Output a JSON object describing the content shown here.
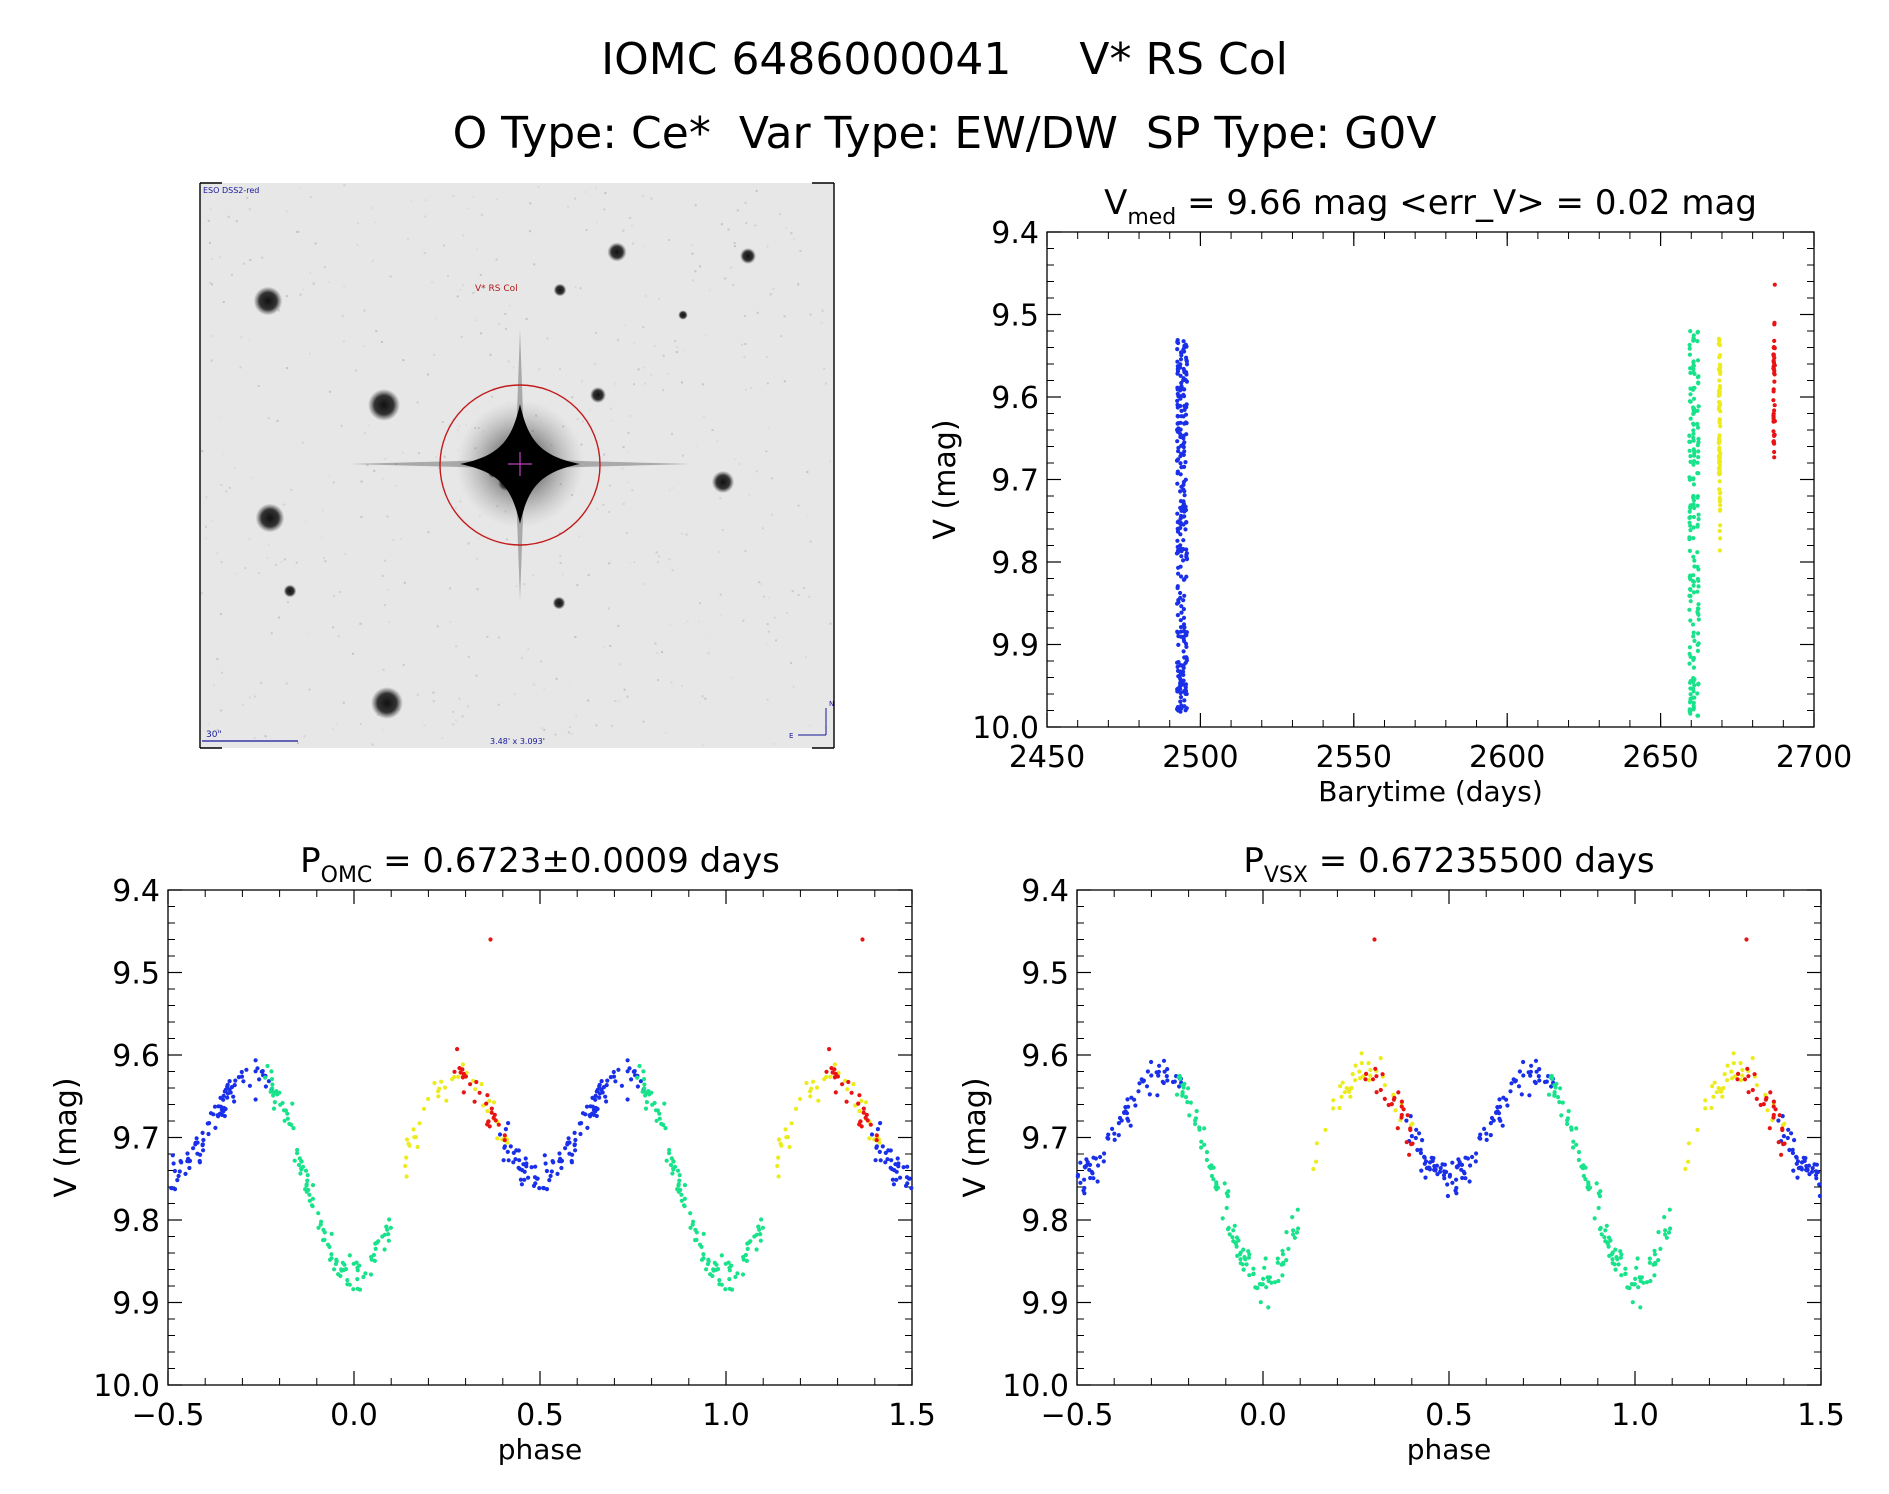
{
  "header": {
    "id": "IOMC 6486000041",
    "name": "V* RS Col",
    "types": "O Type: Ce*  Var Type: EW/DW  SP Type: G0V"
  },
  "finder": {
    "survey": "ESO DSS2-red",
    "target": "V* RS Col",
    "scale": "30\"",
    "fov": "3.48' x 3.093'",
    "compass_n": "N",
    "compass_e": "E"
  },
  "colors": {
    "blue": "#1a2fe8",
    "green": "#19e38a",
    "yellow": "#ecec1c",
    "red": "#e81414"
  },
  "chart_data": [
    {
      "type": "scatter",
      "title_main": "V",
      "title_sub": "med",
      "title_rest": " = 9.66 mag <err_V> = 0.02 mag",
      "xlabel": "Barytime (days)",
      "ylabel": "V (mag)",
      "xlim": [
        2450,
        2700
      ],
      "ylim": [
        10.0,
        9.4
      ],
      "xticks": [
        2450,
        2500,
        2550,
        2600,
        2650,
        2700
      ],
      "yticks": [
        9.4,
        9.5,
        9.6,
        9.7,
        9.8,
        9.9,
        10.0
      ],
      "series": [
        {
          "color": "blue",
          "x_min": 2492.5,
          "x_max": 2495.5,
          "y_min": 9.53,
          "y_max": 9.99
        },
        {
          "color": "green",
          "x_min": 2659.5,
          "x_max": 2662.5,
          "y_min": 9.52,
          "y_max": 9.99
        },
        {
          "color": "yellow",
          "x_min": 2668.5,
          "x_max": 2670.0,
          "y_min": 9.52,
          "y_max": 9.81
        },
        {
          "color": "red",
          "x_min": 2686.5,
          "x_max": 2687.5,
          "y_min": 9.46,
          "y_max": 9.7
        }
      ]
    },
    {
      "type": "scatter",
      "title_main": "P",
      "title_sub": "OMC",
      "title_rest": " = 0.6723±0.0009 days",
      "xlabel": "phase",
      "ylabel": "V (mag)",
      "xlim": [
        -0.5,
        1.5
      ],
      "ylim": [
        10.0,
        9.4
      ],
      "xticks": [
        -0.5,
        0.0,
        0.5,
        1.0,
        1.5
      ],
      "yticks": [
        9.4,
        9.5,
        9.6,
        9.7,
        9.8,
        9.9,
        10.0
      ],
      "series": [
        {
          "color": "blue",
          "phase_range": [
            0.38,
            0.78
          ]
        },
        {
          "color": "green",
          "phase_range": [
            0.76,
            1.1
          ]
        },
        {
          "color": "yellow",
          "phase_range": [
            0.13,
            0.42
          ]
        },
        {
          "color": "red",
          "phase_range": [
            0.27,
            0.41
          ]
        }
      ]
    },
    {
      "type": "scatter",
      "title_main": "P",
      "title_sub": "VSX",
      "title_rest": " = 0.67235500 days",
      "xlabel": "phase",
      "ylabel": "V (mag)",
      "xlim": [
        -0.5,
        1.5
      ],
      "ylim": [
        10.0,
        9.4
      ],
      "xticks": [
        -0.5,
        0.0,
        0.5,
        1.0,
        1.5
      ],
      "yticks": [
        9.4,
        9.5,
        9.6,
        9.7,
        9.8,
        9.9,
        10.0
      ],
      "series": [
        {
          "color": "blue",
          "phase_range": [
            0.38,
            0.78
          ]
        },
        {
          "color": "green",
          "phase_range": [
            0.76,
            1.1
          ]
        },
        {
          "color": "yellow",
          "phase_range": [
            0.13,
            0.42
          ]
        },
        {
          "color": "red",
          "phase_range": [
            0.27,
            0.41
          ]
        }
      ]
    }
  ]
}
